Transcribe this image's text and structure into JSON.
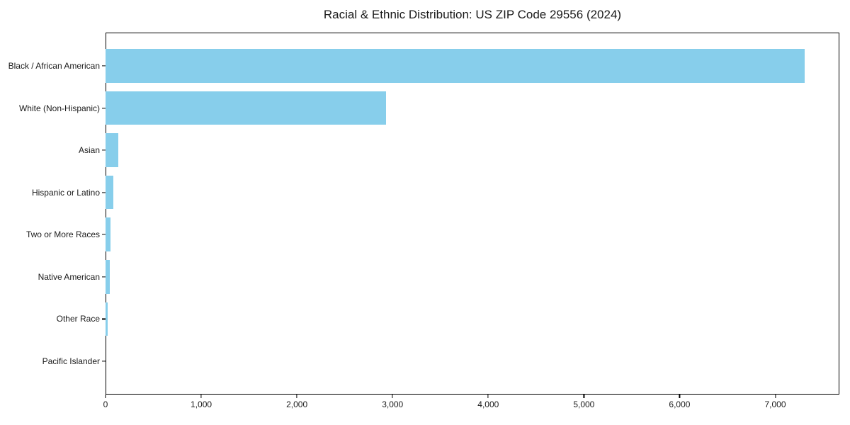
{
  "chart_data": {
    "type": "bar",
    "orientation": "horizontal",
    "title": "Racial & Ethnic Distribution: US ZIP Code 29556 (2024)",
    "categories": [
      "Black / African American",
      "White (Non-Hispanic)",
      "Asian",
      "Hispanic or Latino",
      "Two or More Races",
      "Native American",
      "Other Race",
      "Pacific Islander"
    ],
    "values": [
      7305,
      2930,
      135,
      78,
      52,
      42,
      22,
      0
    ],
    "xlabel": "",
    "ylabel": "",
    "xlim": [
      0,
      7670
    ],
    "xticks": [
      0,
      1000,
      2000,
      3000,
      4000,
      5000,
      6000,
      7000
    ],
    "xtick_labels": [
      "0",
      "1,000",
      "2,000",
      "3,000",
      "4,000",
      "5,000",
      "6,000",
      "7,000"
    ],
    "bar_color": "#87CEEB",
    "text_color": "#1a1a1a",
    "grid": false,
    "legend": "none",
    "plot_border": true
  }
}
